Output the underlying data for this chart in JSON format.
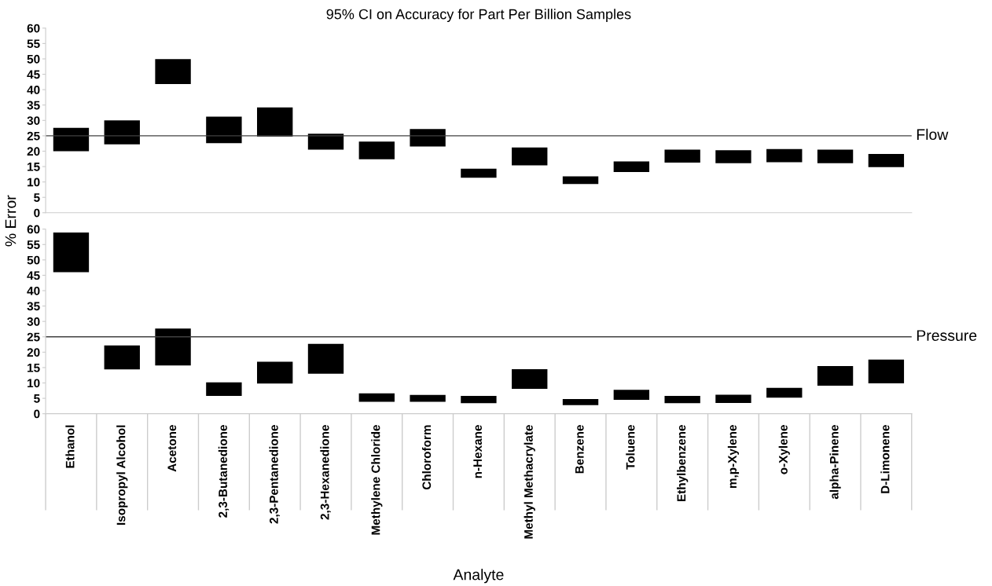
{
  "chart_data": [
    {
      "type": "bar",
      "title": "95% CI on Accuracy for Part Per Billion Samples",
      "ylabel": "% Error",
      "categories": [
        "Ethanol",
        "Isopropyl Alcohol",
        "Acetone",
        "2,3-Butanedione",
        "2,3-Pentanedione",
        "2,3-Hexanedione",
        "Methylene Chloride",
        "Chloroform",
        "n-Hexane",
        "Methyl Methacrylate",
        "Benzene",
        "Toluene",
        "Ethylbenzene",
        "m,p-Xylene",
        "o-Xylene",
        "alpha-Pinene",
        "D-Limonene"
      ],
      "base": [
        20.0,
        22.2,
        41.8,
        22.6,
        24.8,
        20.5,
        17.4,
        21.5,
        11.4,
        15.4,
        9.3,
        13.2,
        16.3,
        16.1,
        16.4,
        16.1,
        14.8
      ],
      "values": [
        7.6,
        7.8,
        8.1,
        8.6,
        9.4,
        5.2,
        5.7,
        5.7,
        2.9,
        5.8,
        2.5,
        3.5,
        4.2,
        4.2,
        4.3,
        4.4,
        4.3
      ],
      "color": "#000000",
      "ylim": [
        0,
        60
      ],
      "yticks": [
        0,
        5,
        10,
        15,
        20,
        25,
        30,
        35,
        40,
        45,
        50,
        55,
        60
      ],
      "ref_lines": [
        {
          "axis": "y",
          "value": 25,
          "label": "Flow",
          "color": "#404040"
        }
      ],
      "tick_labels": "y"
    },
    {
      "type": "bar",
      "xlabel": "Analyte",
      "categories": [
        "Ethanol",
        "Isopropyl Alcohol",
        "Acetone",
        "2,3-Butanedione",
        "2,3-Pentanedione",
        "2,3-Hexanedione",
        "Methylene Chloride",
        "Chloroform",
        "n-Hexane",
        "Methyl Methacrylate",
        "Benzene",
        "Toluene",
        "Ethylbenzene",
        "m,p-Xylene",
        "o-Xylene",
        "alpha-Pinene",
        "D-Limonene"
      ],
      "base": [
        46.0,
        14.4,
        15.7,
        5.8,
        9.8,
        13.0,
        3.9,
        3.9,
        3.4,
        8.1,
        2.8,
        4.5,
        3.4,
        3.5,
        5.2,
        9.1,
        9.9
      ],
      "values": [
        12.9,
        7.8,
        12.0,
        4.4,
        7.1,
        9.7,
        2.7,
        2.2,
        2.4,
        6.4,
        2.0,
        3.3,
        2.4,
        2.7,
        3.2,
        6.4,
        7.7
      ],
      "color": "#000000",
      "ylim": [
        0,
        60
      ],
      "yticks": [
        0,
        5,
        10,
        15,
        20,
        25,
        30,
        35,
        40,
        45,
        50,
        55,
        60
      ],
      "ref_lines": [
        {
          "axis": "y",
          "value": 25,
          "label": "Pressure",
          "color": "#404040"
        }
      ]
    }
  ]
}
